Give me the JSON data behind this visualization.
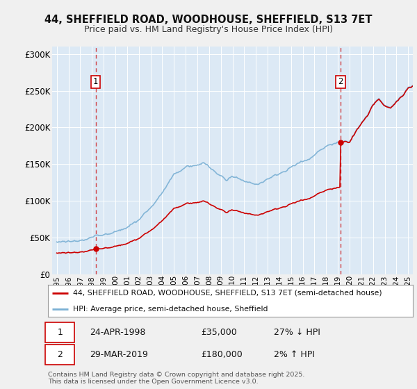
{
  "title_line1": "44, SHEFFIELD ROAD, WOODHOUSE, SHEFFIELD, S13 7ET",
  "title_line2": "Price paid vs. HM Land Registry's House Price Index (HPI)",
  "ylim": [
    0,
    310000
  ],
  "yticks": [
    0,
    50000,
    100000,
    150000,
    200000,
    250000,
    300000
  ],
  "ytick_labels": [
    "£0",
    "£50K",
    "£100K",
    "£150K",
    "£200K",
    "£250K",
    "£300K"
  ],
  "xmin": 1994.6,
  "xmax": 2025.4,
  "fig_bg_color": "#f0f0f0",
  "plot_bg_color": "#dce9f5",
  "grid_color": "#ffffff",
  "red_line_color": "#cc0000",
  "blue_line_color": "#7ab0d4",
  "sale1_year": 1998.31,
  "sale1_price": 35000,
  "sale2_year": 2019.24,
  "sale2_price": 180000,
  "legend_line1": "44, SHEFFIELD ROAD, WOODHOUSE, SHEFFIELD, S13 7ET (semi-detached house)",
  "legend_line2": "HPI: Average price, semi-detached house, Sheffield",
  "sale1_date": "24-APR-1998",
  "sale1_val": "£35,000",
  "sale1_pct": "27% ↓ HPI",
  "sale2_date": "29-MAR-2019",
  "sale2_val": "£180,000",
  "sale2_pct": "2% ↑ HPI",
  "footnote": "Contains HM Land Registry data © Crown copyright and database right 2025.\nThis data is licensed under the Open Government Licence v3.0."
}
